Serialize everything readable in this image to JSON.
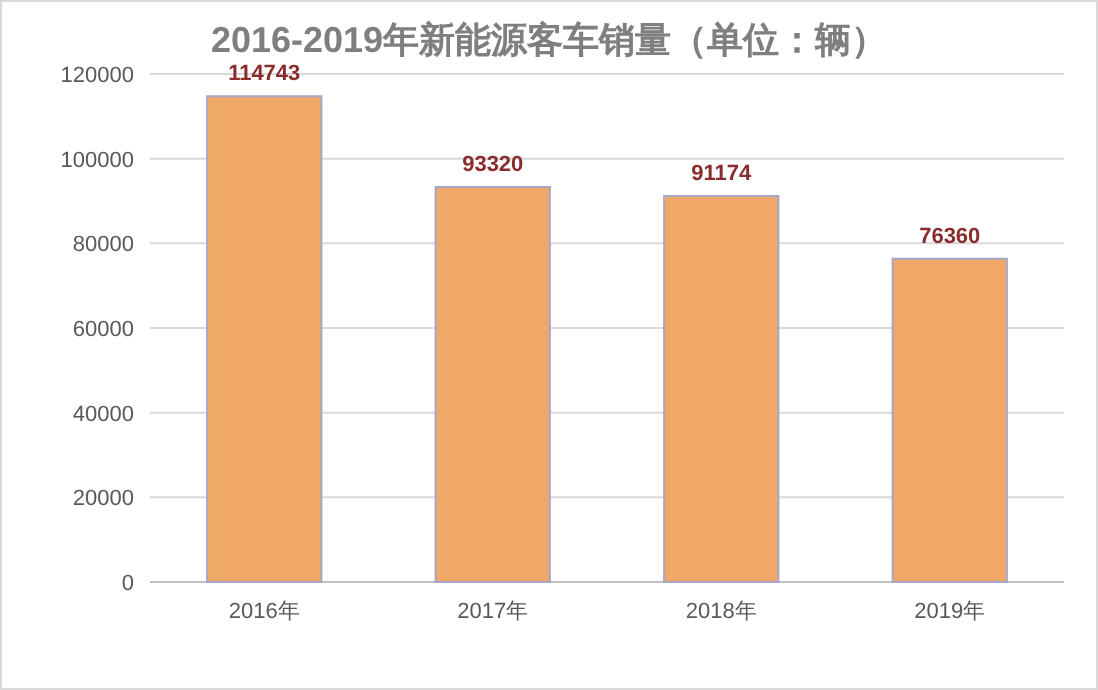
{
  "chart_data": {
    "type": "bar",
    "title": "2016-2019年新能源客车销量（单位：辆）",
    "categories": [
      "2016年",
      "2017年",
      "2018年",
      "2019年"
    ],
    "values": [
      114743,
      93320,
      91174,
      76360
    ],
    "color": "#f0a868",
    "ylim": [
      0,
      120000
    ],
    "yticks": [
      0,
      20000,
      40000,
      60000,
      80000,
      100000,
      120000
    ],
    "grid": "y",
    "data_labels": true
  }
}
